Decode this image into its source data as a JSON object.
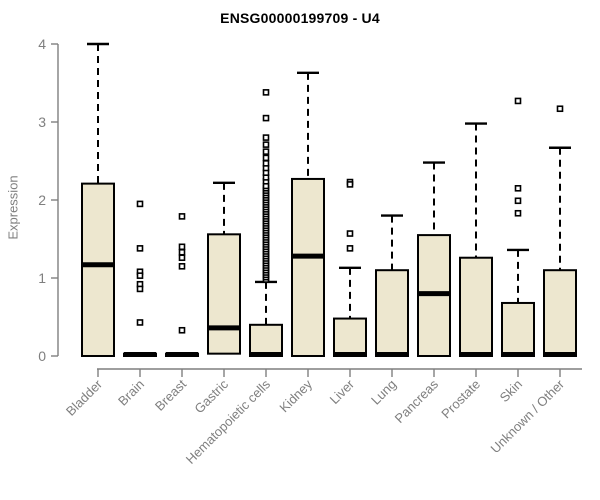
{
  "chart_data": {
    "type": "boxplot",
    "title": "ENSG00000199709 - U4",
    "ylabel": "Expression",
    "xlabel": "",
    "ylim": [
      0,
      4
    ],
    "yticks": [
      0,
      1,
      2,
      3,
      4
    ],
    "grid": false,
    "legend": false,
    "colors": {
      "box_fill": "#ede7cf",
      "box_stroke": "#000000",
      "whisker": "#000000",
      "axis": "#7f7f7f",
      "tick_label": "#7f7f7f",
      "title": "#000000",
      "background": "#ffffff"
    },
    "categories": [
      "Bladder",
      "Brain",
      "Breast",
      "Gastric",
      "Hematopoietic cells",
      "Kidney",
      "Liver",
      "Lung",
      "Pancreas",
      "Prostate",
      "Skin",
      "Unknown / Other"
    ],
    "boxes": [
      {
        "category": "Bladder",
        "min": 0,
        "q1": 0,
        "median": 1.17,
        "q3": 2.21,
        "max": 4.0,
        "outliers": []
      },
      {
        "category": "Brain",
        "min": 0,
        "q1": 0,
        "median": 0.02,
        "q3": 0.03,
        "max": 0.03,
        "outliers": [
          1.95,
          1.38,
          1.08,
          1.03,
          0.92,
          0.86,
          0.43
        ]
      },
      {
        "category": "Breast",
        "min": 0,
        "q1": 0,
        "median": 0.02,
        "q3": 0.03,
        "max": 0.03,
        "outliers": [
          1.79,
          1.4,
          1.33,
          1.26,
          1.15,
          0.33
        ]
      },
      {
        "category": "Gastric",
        "min": 0,
        "q1": 0.03,
        "median": 0.36,
        "q3": 1.56,
        "max": 2.22,
        "outliers": []
      },
      {
        "category": "Hematopoietic cells",
        "min": 0,
        "q1": 0,
        "median": 0.02,
        "q3": 0.4,
        "max": 0.95,
        "outliers": [
          0.98,
          1.01,
          1.04,
          1.07,
          1.1,
          1.13,
          1.16,
          1.19,
          1.22,
          1.25,
          1.28,
          1.31,
          1.34,
          1.37,
          1.4,
          1.43,
          1.46,
          1.49,
          1.52,
          1.55,
          1.58,
          1.61,
          1.64,
          1.67,
          1.7,
          1.73,
          1.76,
          1.79,
          1.82,
          1.85,
          1.88,
          1.91,
          1.94,
          1.97,
          2.0,
          2.03,
          2.06,
          2.09,
          2.12,
          2.15,
          2.18,
          2.24,
          2.29,
          2.35,
          2.41,
          2.47,
          2.54,
          2.62,
          2.71,
          2.8,
          3.05,
          3.38
        ]
      },
      {
        "category": "Kidney",
        "min": 0,
        "q1": 0,
        "median": 1.28,
        "q3": 2.27,
        "max": 3.63,
        "outliers": []
      },
      {
        "category": "Liver",
        "min": 0,
        "q1": 0,
        "median": 0.02,
        "q3": 0.48,
        "max": 1.13,
        "outliers": [
          2.23,
          2.2,
          1.57,
          1.38
        ]
      },
      {
        "category": "Lung",
        "min": 0,
        "q1": 0,
        "median": 0.02,
        "q3": 1.1,
        "max": 1.8,
        "outliers": []
      },
      {
        "category": "Pancreas",
        "min": 0,
        "q1": 0,
        "median": 0.8,
        "q3": 1.55,
        "max": 2.48,
        "outliers": []
      },
      {
        "category": "Prostate",
        "min": 0,
        "q1": 0,
        "median": 0.02,
        "q3": 1.26,
        "max": 2.98,
        "outliers": []
      },
      {
        "category": "Skin",
        "min": 0,
        "q1": 0,
        "median": 0.02,
        "q3": 0.68,
        "max": 1.36,
        "outliers": [
          3.27,
          2.15,
          1.99,
          1.83
        ]
      },
      {
        "category": "Unknown / Other",
        "min": 0,
        "q1": 0,
        "median": 0.02,
        "q3": 1.1,
        "max": 2.67,
        "outliers": [
          3.17
        ]
      }
    ]
  }
}
